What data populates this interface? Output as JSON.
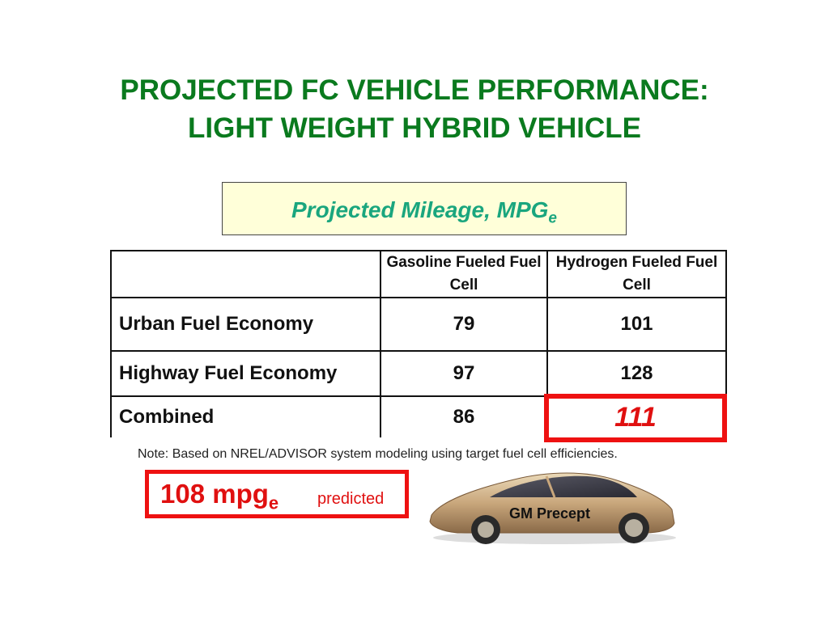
{
  "title": {
    "line1": "PROJECTED FC VEHICLE PERFORMANCE:",
    "line2": "LIGHT WEIGHT HYBRID VEHICLE"
  },
  "mileage_box": {
    "text": "Projected Mileage, MPG",
    "subscript": "e"
  },
  "table": {
    "headers": [
      "",
      "Gasoline Fueled Fuel Cell",
      "Hydrogen Fueled Fuel Cell"
    ],
    "rows": [
      {
        "label": "Urban Fuel Economy",
        "gasoline": "79",
        "hydrogen": "101"
      },
      {
        "label": "Highway Fuel Economy",
        "gasoline": "97",
        "hydrogen": "128"
      },
      {
        "label": "Combined",
        "gasoline": "86",
        "hydrogen": "111"
      }
    ]
  },
  "note": "Note:  Based on NREL/ADVISOR system modeling using target fuel cell efficiencies.",
  "predicted": {
    "value": "108 mpg",
    "subscript": "e",
    "label": "predicted"
  },
  "car": {
    "label": "GM Precept"
  },
  "colors": {
    "title": "#0a7a1e",
    "mileage": "#1aa67e",
    "highlight": "#e01010",
    "box_bg": "#ffffd9"
  }
}
